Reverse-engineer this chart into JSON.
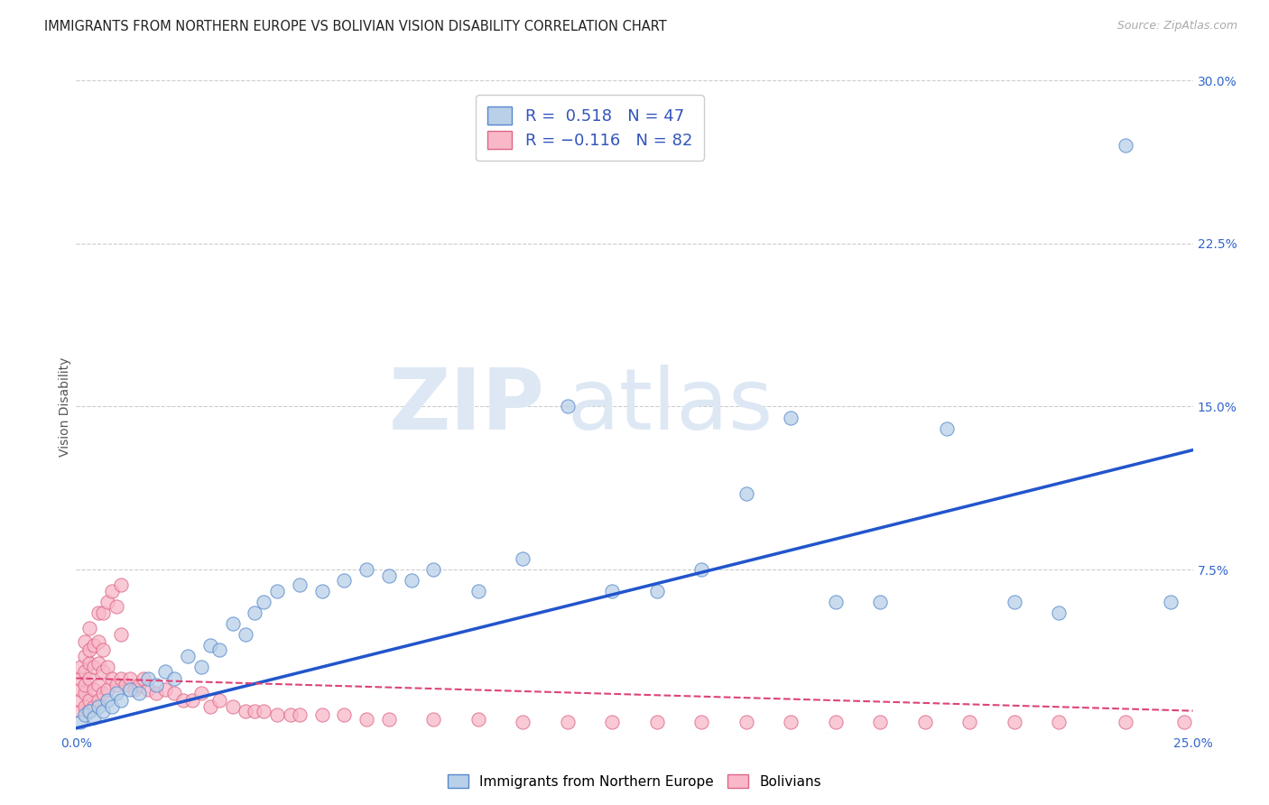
{
  "title": "IMMIGRANTS FROM NORTHERN EUROPE VS BOLIVIAN VISION DISABILITY CORRELATION CHART",
  "source": "Source: ZipAtlas.com",
  "ylabel": "Vision Disability",
  "xlim": [
    0.0,
    0.25
  ],
  "ylim": [
    0.0,
    0.3
  ],
  "xticks": [
    0.0,
    0.05,
    0.1,
    0.15,
    0.2,
    0.25
  ],
  "yticks": [
    0.0,
    0.075,
    0.15,
    0.225,
    0.3
  ],
  "xticklabels": [
    "0.0%",
    "",
    "",
    "",
    "",
    "25.0%"
  ],
  "yticklabels": [
    "",
    "7.5%",
    "15.0%",
    "22.5%",
    "30.0%"
  ],
  "blue_R": 0.518,
  "blue_N": 47,
  "pink_R": -0.116,
  "pink_N": 82,
  "blue_color": "#b8d0e8",
  "blue_edge_color": "#5588cc",
  "blue_line_color": "#2255cc",
  "pink_color": "#f8b8c8",
  "pink_edge_color": "#dd6688",
  "pink_line_color": "#dd4477",
  "background_color": "#ffffff",
  "grid_color": "#cccccc",
  "title_fontsize": 10.5,
  "axis_label_fontsize": 10,
  "tick_fontsize": 10,
  "legend_label1": "Immigrants from Northern Europe",
  "legend_label2": "Bolivians",
  "watermark_color": "#dde8f4",
  "blue_scatter_x": [
    0.001,
    0.002,
    0.003,
    0.004,
    0.005,
    0.006,
    0.007,
    0.008,
    0.009,
    0.01,
    0.012,
    0.014,
    0.016,
    0.018,
    0.02,
    0.022,
    0.025,
    0.028,
    0.03,
    0.032,
    0.035,
    0.038,
    0.04,
    0.042,
    0.045,
    0.05,
    0.055,
    0.06,
    0.065,
    0.07,
    0.075,
    0.08,
    0.09,
    0.1,
    0.11,
    0.12,
    0.13,
    0.14,
    0.15,
    0.16,
    0.17,
    0.18,
    0.195,
    0.21,
    0.22,
    0.235,
    0.245
  ],
  "blue_scatter_y": [
    0.005,
    0.008,
    0.01,
    0.007,
    0.012,
    0.01,
    0.015,
    0.012,
    0.018,
    0.015,
    0.02,
    0.018,
    0.025,
    0.022,
    0.028,
    0.025,
    0.035,
    0.03,
    0.04,
    0.038,
    0.05,
    0.045,
    0.055,
    0.06,
    0.065,
    0.068,
    0.065,
    0.07,
    0.075,
    0.072,
    0.07,
    0.075,
    0.065,
    0.08,
    0.15,
    0.065,
    0.065,
    0.075,
    0.11,
    0.145,
    0.06,
    0.06,
    0.14,
    0.06,
    0.055,
    0.27,
    0.06
  ],
  "pink_scatter_x": [
    0.001,
    0.001,
    0.001,
    0.001,
    0.001,
    0.002,
    0.002,
    0.002,
    0.002,
    0.002,
    0.002,
    0.003,
    0.003,
    0.003,
    0.003,
    0.003,
    0.003,
    0.004,
    0.004,
    0.004,
    0.004,
    0.005,
    0.005,
    0.005,
    0.005,
    0.005,
    0.006,
    0.006,
    0.006,
    0.006,
    0.007,
    0.007,
    0.007,
    0.008,
    0.008,
    0.009,
    0.009,
    0.01,
    0.01,
    0.01,
    0.011,
    0.012,
    0.013,
    0.014,
    0.015,
    0.016,
    0.018,
    0.02,
    0.022,
    0.024,
    0.026,
    0.028,
    0.03,
    0.032,
    0.035,
    0.038,
    0.04,
    0.042,
    0.045,
    0.048,
    0.05,
    0.055,
    0.06,
    0.065,
    0.07,
    0.08,
    0.09,
    0.1,
    0.11,
    0.12,
    0.13,
    0.14,
    0.15,
    0.16,
    0.17,
    0.18,
    0.19,
    0.2,
    0.21,
    0.22,
    0.235,
    0.248
  ],
  "pink_scatter_y": [
    0.01,
    0.015,
    0.02,
    0.025,
    0.03,
    0.012,
    0.018,
    0.022,
    0.028,
    0.035,
    0.042,
    0.01,
    0.015,
    0.025,
    0.032,
    0.038,
    0.048,
    0.012,
    0.02,
    0.03,
    0.04,
    0.015,
    0.022,
    0.032,
    0.042,
    0.055,
    0.018,
    0.028,
    0.038,
    0.055,
    0.02,
    0.03,
    0.06,
    0.025,
    0.065,
    0.022,
    0.058,
    0.025,
    0.045,
    0.068,
    0.022,
    0.025,
    0.02,
    0.022,
    0.025,
    0.02,
    0.018,
    0.02,
    0.018,
    0.015,
    0.015,
    0.018,
    0.012,
    0.015,
    0.012,
    0.01,
    0.01,
    0.01,
    0.008,
    0.008,
    0.008,
    0.008,
    0.008,
    0.006,
    0.006,
    0.006,
    0.006,
    0.005,
    0.005,
    0.005,
    0.005,
    0.005,
    0.005,
    0.005,
    0.005,
    0.005,
    0.005,
    0.005,
    0.005,
    0.005,
    0.005,
    0.005
  ]
}
